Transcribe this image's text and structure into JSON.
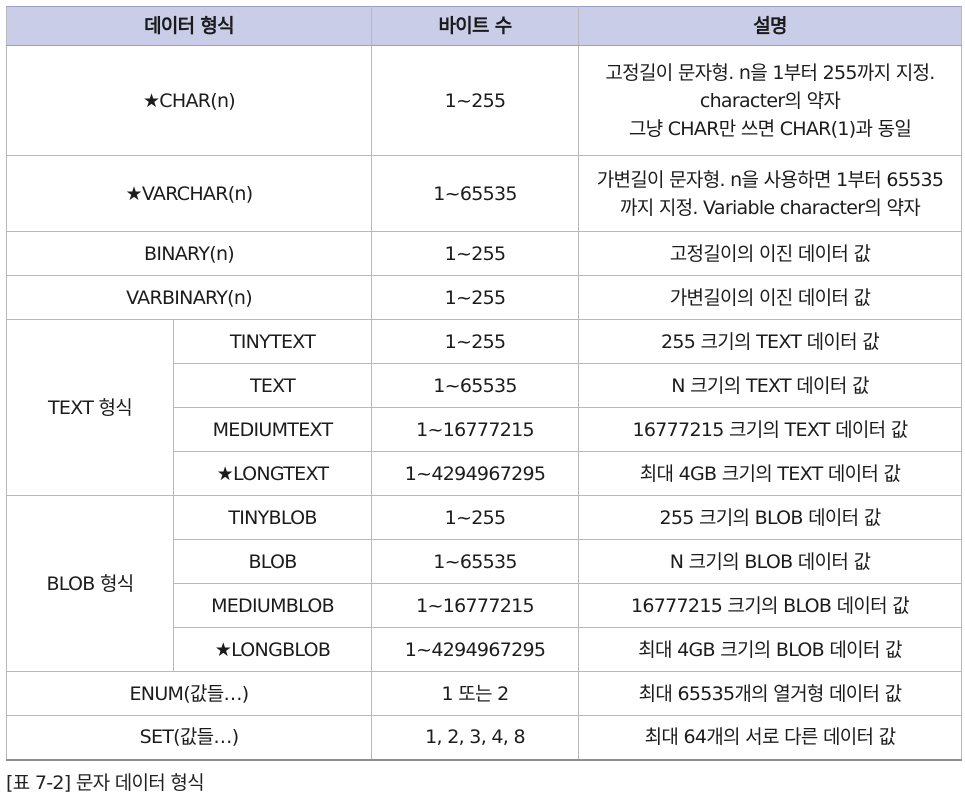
{
  "headers": {
    "type": "데이터 형식",
    "bytes": "바이트 수",
    "desc": "설명"
  },
  "rows": [
    {
      "type": "★CHAR(n)",
      "bytes": "1~255",
      "desc": [
        "고정길이 문자형. n을 1부터 255까지 지정.",
        "character의 약자",
        "그냥 CHAR만 쓰면 CHAR(1)과 동일"
      ]
    },
    {
      "type": "★VARCHAR(n)",
      "bytes": "1~65535",
      "desc": [
        "가변길이 문자형. n을 사용하면 1부터 65535",
        "까지 지정. Variable character의 약자"
      ]
    },
    {
      "type": "BINARY(n)",
      "bytes": "1~255",
      "desc": "고정길이의 이진 데이터 값"
    },
    {
      "type": "VARBINARY(n)",
      "bytes": "1~255",
      "desc": "가변길이의 이진 데이터 값"
    }
  ],
  "text_group": {
    "label": "TEXT 형식",
    "rows": [
      {
        "type": "TINYTEXT",
        "bytes": "1~255",
        "desc": "255 크기의 TEXT 데이터 값"
      },
      {
        "type": "TEXT",
        "bytes": "1~65535",
        "desc": "N 크기의 TEXT 데이터 값"
      },
      {
        "type": "MEDIUMTEXT",
        "bytes": "1~16777215",
        "desc": "16777215 크기의 TEXT 데이터 값"
      },
      {
        "type": "★LONGTEXT",
        "bytes": "1~4294967295",
        "desc": "최대 4GB 크기의 TEXT 데이터 값"
      }
    ]
  },
  "blob_group": {
    "label": "BLOB 형식",
    "rows": [
      {
        "type": "TINYBLOB",
        "bytes": "1~255",
        "desc": "255 크기의 BLOB 데이터 값"
      },
      {
        "type": "BLOB",
        "bytes": "1~65535",
        "desc": "N 크기의 BLOB 데이터 값"
      },
      {
        "type": "MEDIUMBLOB",
        "bytes": "1~16777215",
        "desc": "16777215 크기의 BLOB 데이터 값"
      },
      {
        "type": "★LONGBLOB",
        "bytes": "1~4294967295",
        "desc": "최대 4GB 크기의 BLOB 데이터 값"
      }
    ]
  },
  "tail_rows": [
    {
      "type": "ENUM(값들…)",
      "bytes": "1 또는 2",
      "desc": "최대 65535개의 열거형 데이터 값"
    },
    {
      "type": "SET(값들…)",
      "bytes": "1, 2, 3, 4, 8",
      "desc": "최대 64개의 서로 다른 데이터 값"
    }
  ],
  "caption": "[표 7-2] 문자 데이터 형식",
  "colors": {
    "header_bg": "#c9cde8",
    "border": "#b9b9b9"
  }
}
